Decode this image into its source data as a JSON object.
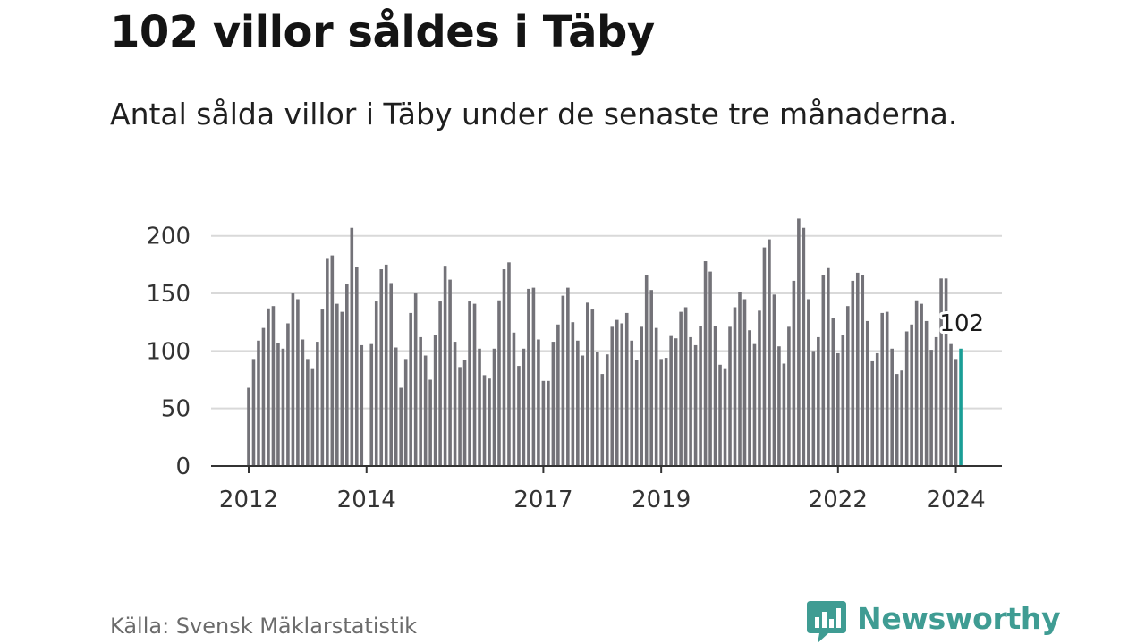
{
  "header": {
    "title": "102 villor såldes i Täby",
    "subtitle": "Antal sålda villor i Täby under de senaste tre månaderna."
  },
  "footer": {
    "source": "Källa: Svensk Mäklarstatistik",
    "brand": "Newsworthy"
  },
  "colors": {
    "bar": "#737278",
    "highlight": "#1a9e96",
    "grid": "#d9d9d9",
    "axis": "#333333",
    "brand": "#3f9c93"
  },
  "chart_data": {
    "type": "bar",
    "title": "102 villor såldes i Täby",
    "xlabel": "",
    "ylabel": "",
    "ylim": [
      0,
      220
    ],
    "yticks": [
      0,
      50,
      100,
      150,
      200
    ],
    "grid": true,
    "start": "2012-01",
    "highlight_last": true,
    "last_value_label": "102",
    "x_ticks": [
      {
        "label": "2012",
        "index": 0
      },
      {
        "label": "2014",
        "index": 24
      },
      {
        "label": "2017",
        "index": 60
      },
      {
        "label": "2019",
        "index": 84
      },
      {
        "label": "2022",
        "index": 120
      },
      {
        "label": "2024",
        "index": 144
      }
    ],
    "values": [
      68,
      93,
      109,
      120,
      137,
      139,
      107,
      102,
      124,
      150,
      145,
      110,
      93,
      85,
      108,
      136,
      180,
      183,
      141,
      134,
      158,
      207,
      173,
      105,
      null,
      106,
      143,
      171,
      175,
      159,
      103,
      68,
      93,
      133,
      150,
      112,
      96,
      75,
      114,
      143,
      174,
      162,
      108,
      86,
      92,
      143,
      141,
      102,
      79,
      76,
      102,
      144,
      171,
      177,
      116,
      87,
      102,
      154,
      155,
      110,
      74,
      74,
      108,
      123,
      148,
      155,
      125,
      109,
      96,
      142,
      136,
      99,
      80,
      97,
      121,
      127,
      124,
      133,
      109,
      92,
      121,
      166,
      153,
      120,
      93,
      94,
      113,
      111,
      134,
      138,
      112,
      105,
      122,
      178,
      169,
      122,
      88,
      85,
      121,
      138,
      151,
      145,
      118,
      106,
      135,
      190,
      197,
      149,
      104,
      89,
      121,
      161,
      215,
      207,
      145,
      100,
      112,
      166,
      172,
      129,
      98,
      114,
      139,
      161,
      168,
      166,
      126,
      91,
      98,
      133,
      134,
      102,
      80,
      83,
      117,
      123,
      144,
      141,
      126,
      101,
      112,
      163,
      163,
      106,
      93,
      102
    ]
  }
}
